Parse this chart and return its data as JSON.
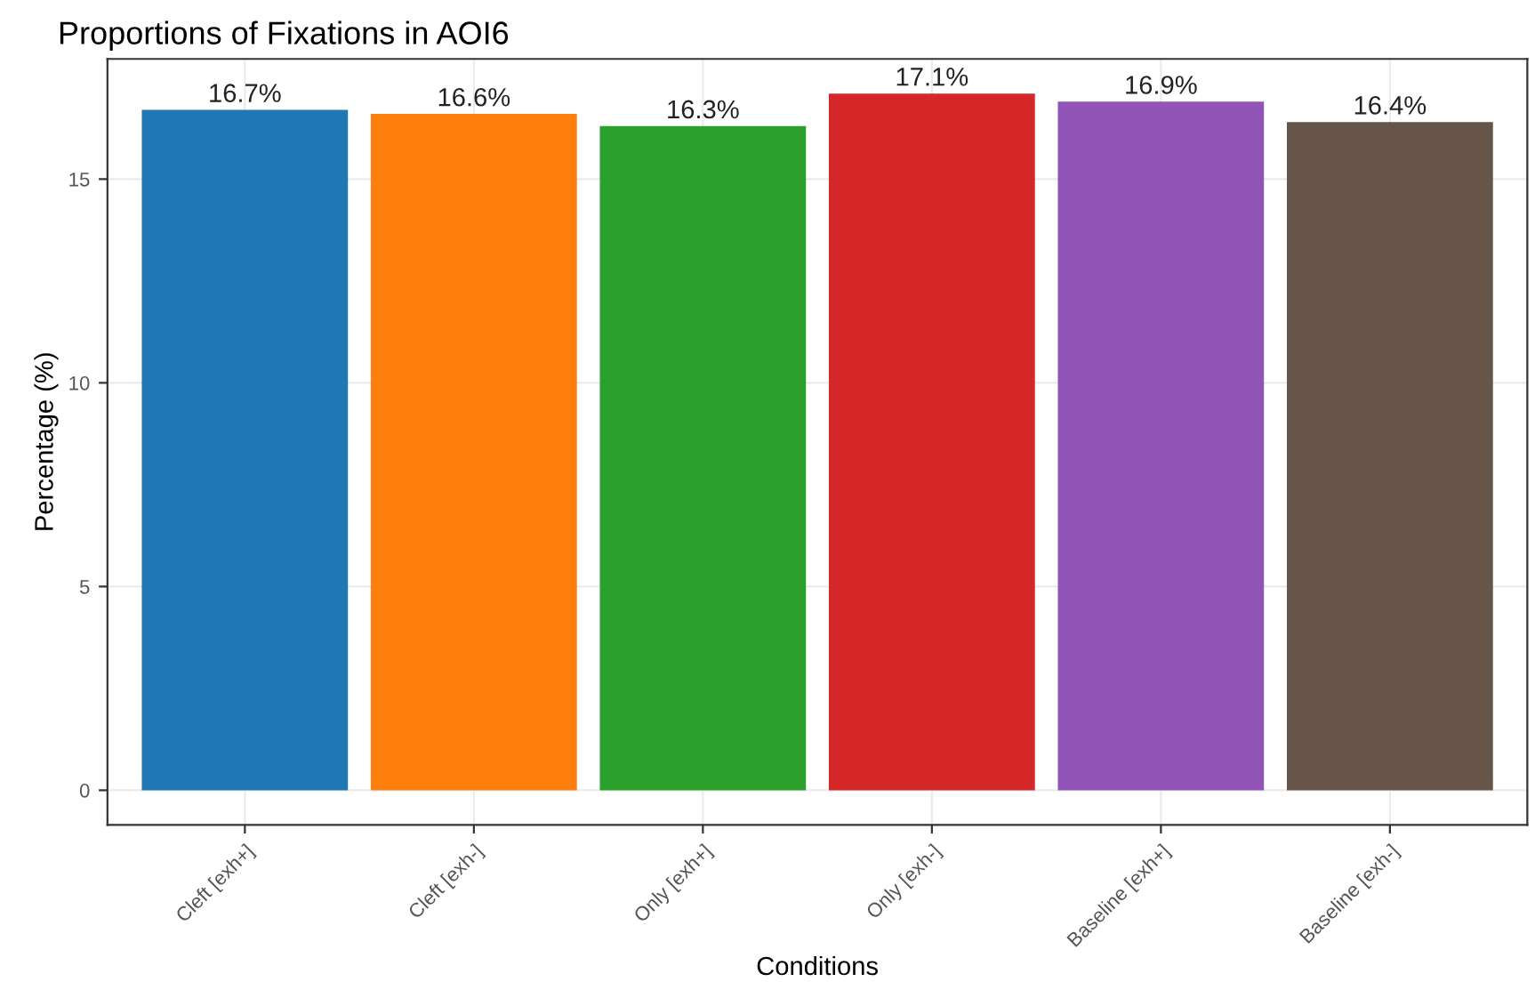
{
  "chart_data": {
    "type": "bar",
    "title": "Proportions of Fixations in AOI6",
    "xlabel": "Conditions",
    "ylabel": "Percentage (%)",
    "categories": [
      "Cleft [exh+]",
      "Cleft [exh-]",
      "Only [exh+]",
      "Only [exh-]",
      "Baseline [exh+]",
      "Baseline [exh-]"
    ],
    "values": [
      16.7,
      16.6,
      16.3,
      17.1,
      16.9,
      16.4
    ],
    "value_labels": [
      "16.7%",
      "16.6%",
      "16.3%",
      "17.1%",
      "16.9%",
      "16.4%"
    ],
    "colors": [
      "#1f77b4",
      "#ff7f0e",
      "#2ca02c",
      "#d62728",
      "#9155b8",
      "#675549"
    ],
    "ylim": [
      -0.85,
      17.95
    ],
    "yticks": [
      0,
      5,
      10,
      15
    ],
    "grid": true
  }
}
